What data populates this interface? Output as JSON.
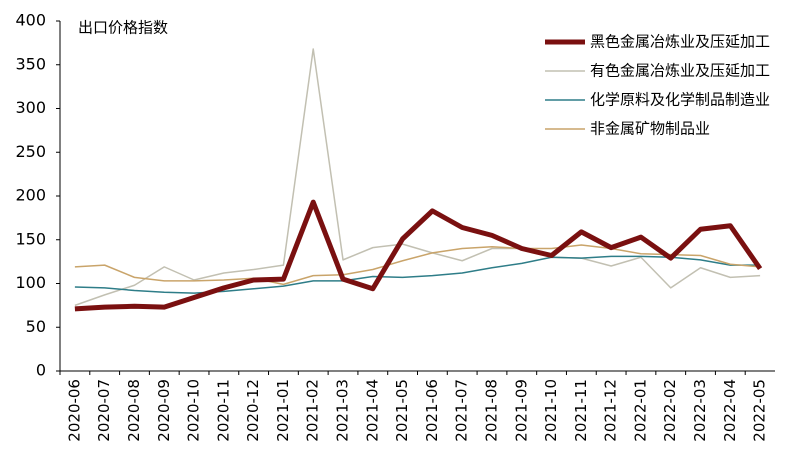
{
  "chart_data": {
    "type": "line",
    "title": "出口价格指数",
    "categories": [
      "2020-06",
      "2020-07",
      "2020-08",
      "2020-09",
      "2020-10",
      "2020-11",
      "2020-12",
      "2021-01",
      "2021-02",
      "2021-03",
      "2021-04",
      "2021-05",
      "2021-06",
      "2021-07",
      "2021-08",
      "2021-09",
      "2021-10",
      "2021-11",
      "2021-12",
      "2022-01",
      "2022-02",
      "2022-03",
      "2022-04",
      "2022-05"
    ],
    "series": [
      {
        "name": "黑色金属冶炼业及压延加工",
        "color": "#7a1010",
        "width": 5,
        "values": [
          71,
          73,
          74,
          73,
          84,
          95,
          104,
          105,
          193,
          105,
          94,
          151,
          183,
          164,
          155,
          140,
          132,
          159,
          141,
          153,
          129,
          162,
          166,
          117
        ]
      },
      {
        "name": "有色金属冶炼业及压延加工",
        "color": "#c2c0b2",
        "width": 1.5,
        "values": [
          75,
          87,
          98,
          119,
          104,
          112,
          116,
          121,
          368,
          127,
          141,
          145,
          135,
          126,
          140,
          140,
          130,
          129,
          120,
          130,
          95,
          118,
          107,
          109
        ]
      },
      {
        "name": "化学原料及化学制品制造业",
        "color": "#2e7d88",
        "width": 1.5,
        "values": [
          96,
          95,
          92,
          90,
          89,
          91,
          94,
          97,
          103,
          103,
          108,
          107,
          109,
          112,
          118,
          123,
          130,
          129,
          131,
          131,
          130,
          127,
          121,
          121
        ]
      },
      {
        "name": "非金属矿物制品业",
        "color": "#c9a46a",
        "width": 1.5,
        "values": [
          119,
          121,
          107,
          103,
          103,
          104,
          106,
          99,
          109,
          110,
          116,
          126,
          135,
          140,
          142,
          140,
          140,
          144,
          140,
          134,
          133,
          132,
          122,
          119
        ]
      }
    ],
    "ylim": [
      0,
      400
    ],
    "yticks": [
      0,
      50,
      100,
      150,
      200,
      250,
      300,
      350,
      400
    ]
  }
}
